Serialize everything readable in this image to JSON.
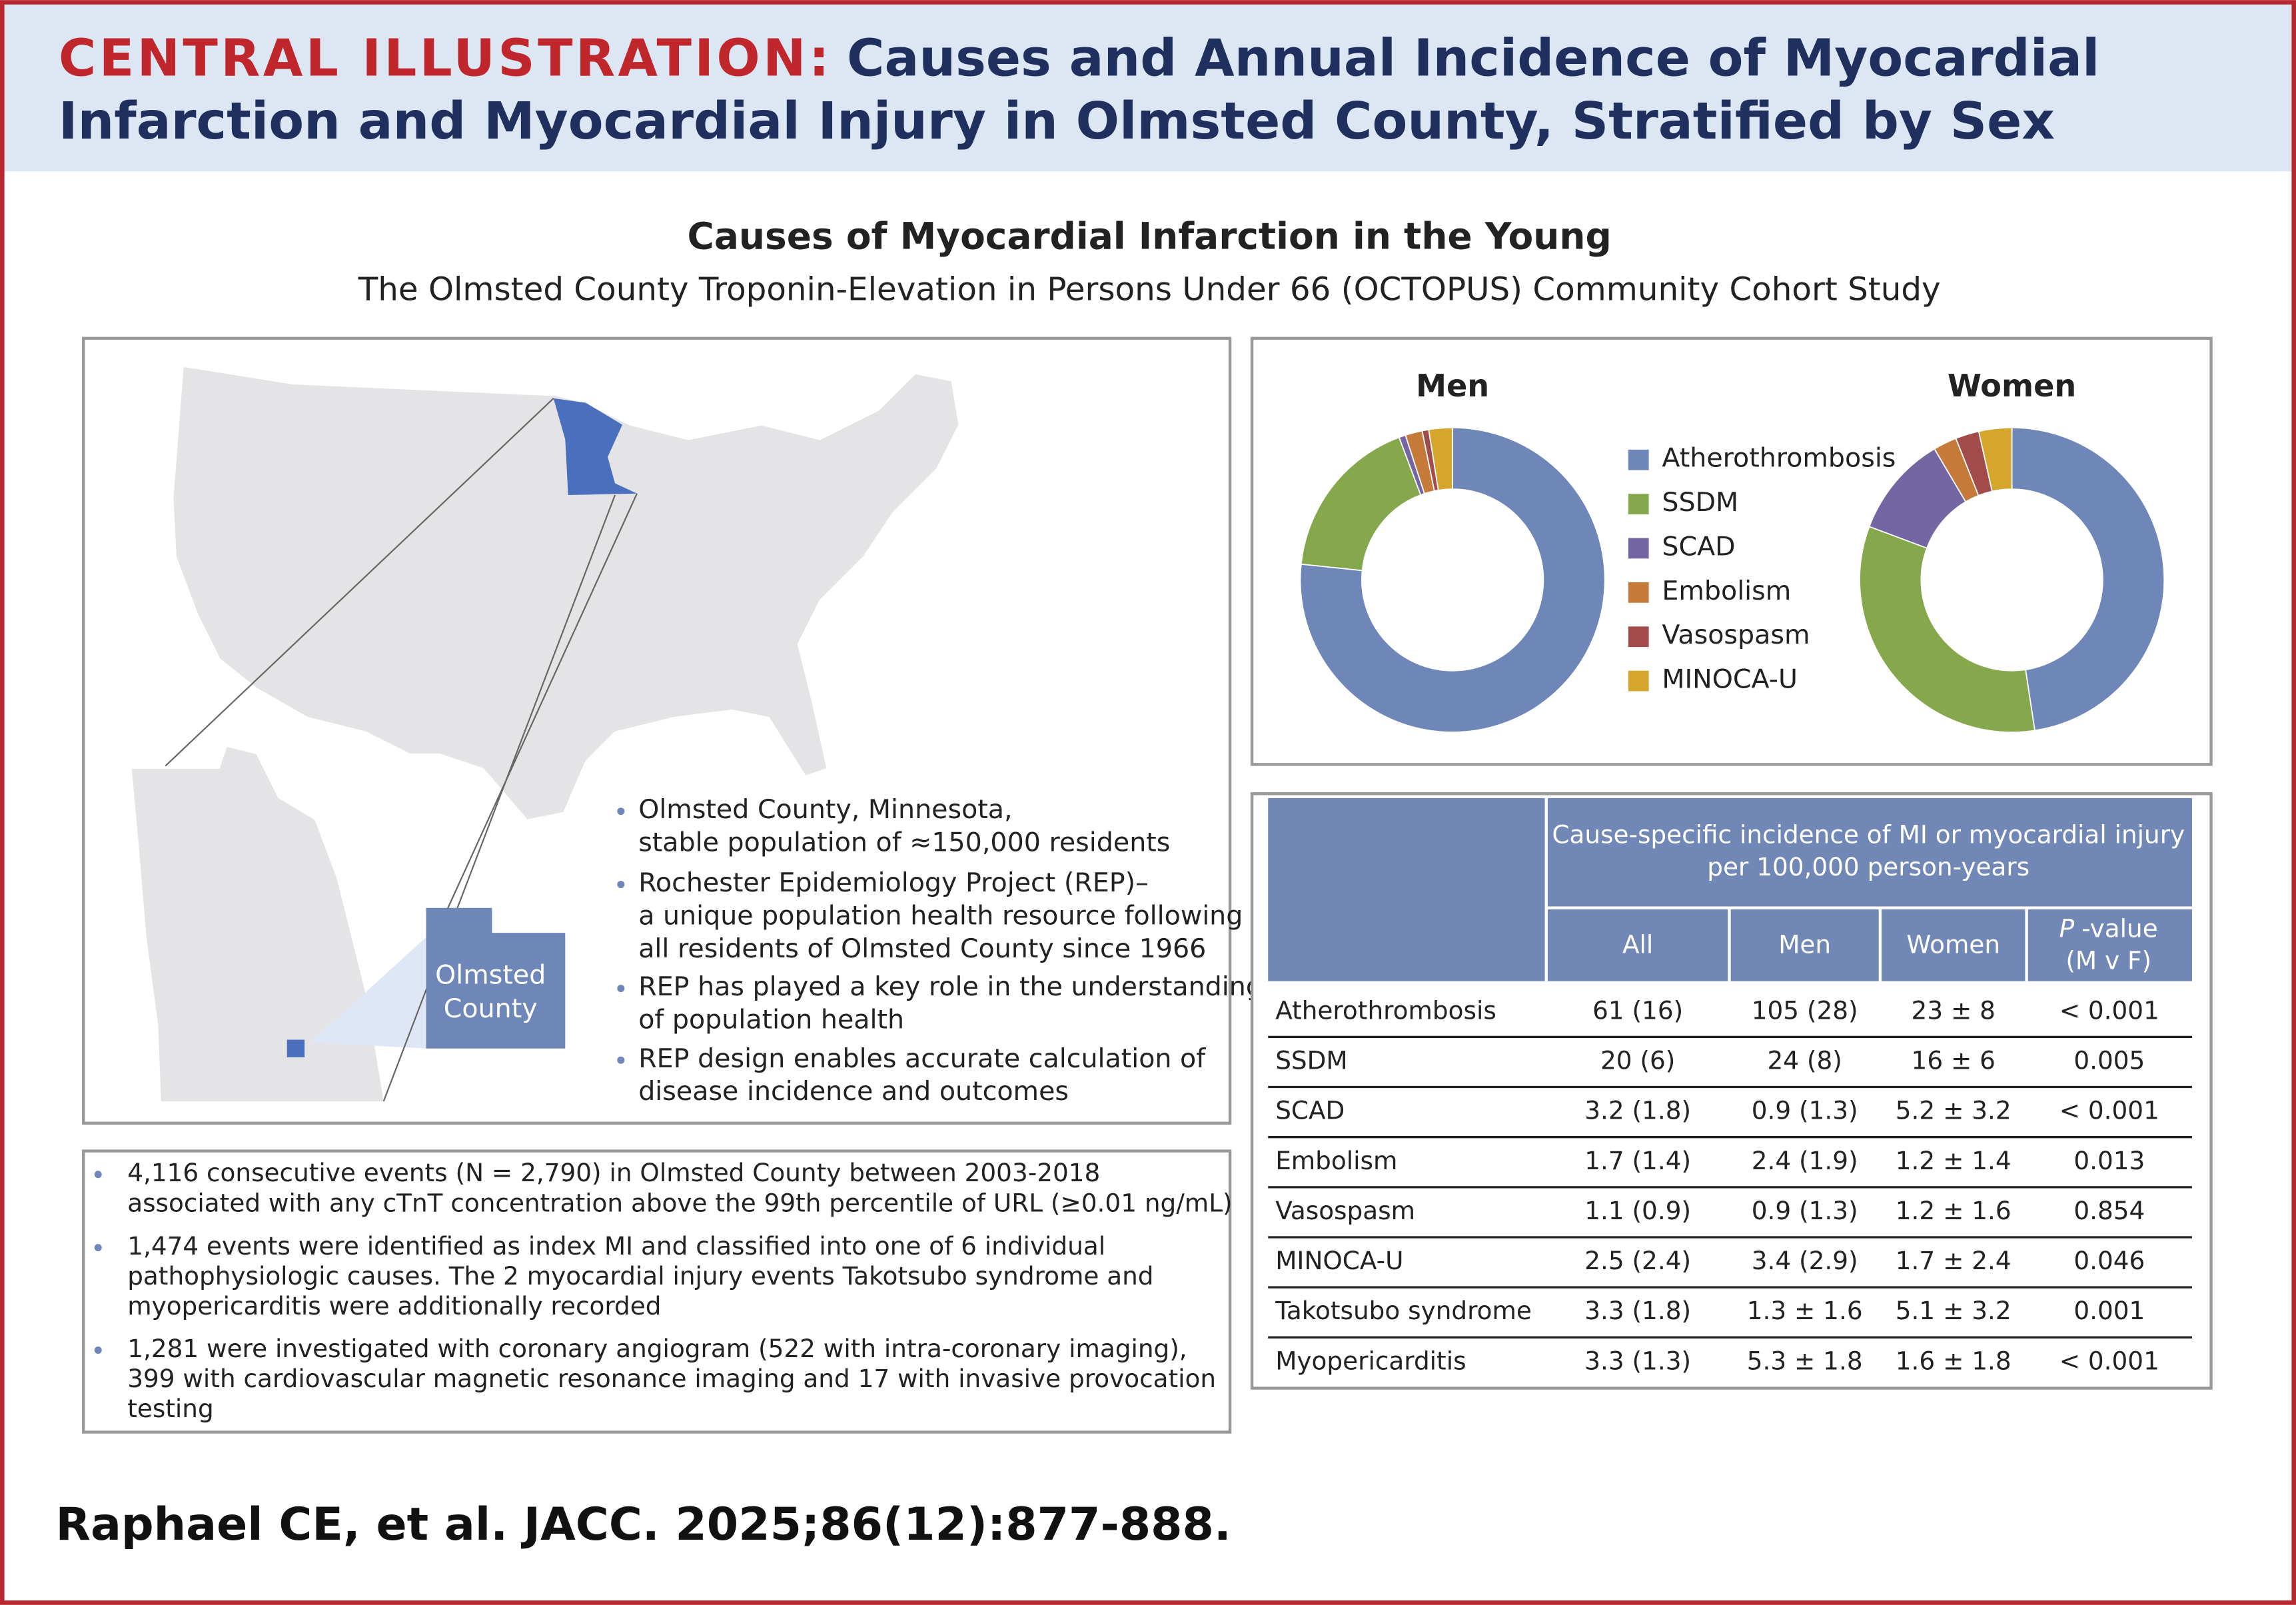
{
  "header": {
    "label": "CENTRAL ILLUSTRATION:",
    "title_lines": [
      "Causes and Annual Incidence of Myocardial",
      "Infarction and Myocardial Injury in Olmsted County, Stratified by Sex"
    ]
  },
  "heading": "Causes of Myocardial Infarction in the Young",
  "subheading": "The Olmsted County Troponin-Elevation in Persons Under 66 (OCTOPUS) Community Cohort Study",
  "map": {
    "county_label": [
      "Olmsted",
      "County"
    ],
    "bullets": [
      [
        "Olmsted County, Minnesota,",
        "stable population of ≈150,000 residents"
      ],
      [
        "Rochester Epidemiology Project (REP)–",
        "a unique population health resource following",
        "all residents of Olmsted County since 1966"
      ],
      [
        "REP has played a key role in the understanding",
        "of population health"
      ],
      [
        "REP design enables accurate calculation of",
        "disease incidence and outcomes"
      ]
    ]
  },
  "chart_data": [
    {
      "type": "pie",
      "title": "Men",
      "values": [
        76.5,
        17.6,
        0.7,
        1.8,
        0.7,
        2.5
      ]
    },
    {
      "type": "pie",
      "title": "Women",
      "values": [
        47.6,
        33.1,
        10.8,
        2.5,
        2.5,
        3.5
      ]
    }
  ],
  "legend": {
    "labels": [
      "Atherothrombosis",
      "SSDM",
      "SCAD",
      "Embolism",
      "Vasospasm",
      "MINOCA-U"
    ],
    "colors": [
      "#6f86b8",
      "#86a84d",
      "#7466a3",
      "#c57a3a",
      "#a34a4a",
      "#d6a52b"
    ]
  },
  "table": {
    "group_header": [
      "Cause-specific incidence of MI or myocardial injury",
      "per 100,000 person-years"
    ],
    "columns": [
      "All",
      "Men",
      "Women"
    ],
    "pvalue_header": {
      "italic": "P",
      "text": "-value",
      "line2": "(M v F)"
    },
    "rows": [
      [
        "Atherothrombosis",
        "61 (16)",
        "105 (28)",
        "23 ± 8",
        "< 0.001"
      ],
      [
        "SSDM",
        "20 (6)",
        "24 (8)",
        "16 ± 6",
        "0.005"
      ],
      [
        "SCAD",
        "3.2 (1.8)",
        "0.9 (1.3)",
        "5.2 ± 3.2",
        "< 0.001"
      ],
      [
        "Embolism",
        "1.7 (1.4)",
        "2.4 (1.9)",
        "1.2 ± 1.4",
        "0.013"
      ],
      [
        "Vasospasm",
        "1.1 (0.9)",
        "0.9 (1.3)",
        "1.2 ± 1.6",
        "0.854"
      ],
      [
        "MINOCA-U",
        "2.5 (2.4)",
        "3.4 (2.9)",
        "1.7 ± 2.4",
        "0.046"
      ],
      [
        "Takotsubo syndrome",
        "3.3 (1.8)",
        "1.3 ± 1.6",
        "5.1 ± 3.2",
        "0.001"
      ],
      [
        "Myopericarditis",
        "3.3 (1.3)",
        "5.3 ± 1.8",
        "1.6 ± 1.8",
        "< 0.001"
      ]
    ]
  },
  "summary": [
    [
      "4,116 consecutive events (N = 2,790) in Olmsted County between 2003-2018",
      "associated with any cTnT concentration above the 99th percentile of URL (≥0.01 ng/mL)"
    ],
    [
      "1,474 events were identified as index MI and classified into one of 6 individual",
      "pathophysiologic causes. The 2 myocardial injury events Takotsubo syndrome and",
      "myopericarditis were additionally recorded"
    ],
    [
      "1,281 were investigated with coronary angiogram (522 with intra-coronary imaging),",
      "399 with cardiovascular magnetic resonance imaging and 17 with invasive provocation",
      "testing"
    ]
  ],
  "citation": "Raphael CE, et al. JACC. 2025;86(12):877-888."
}
